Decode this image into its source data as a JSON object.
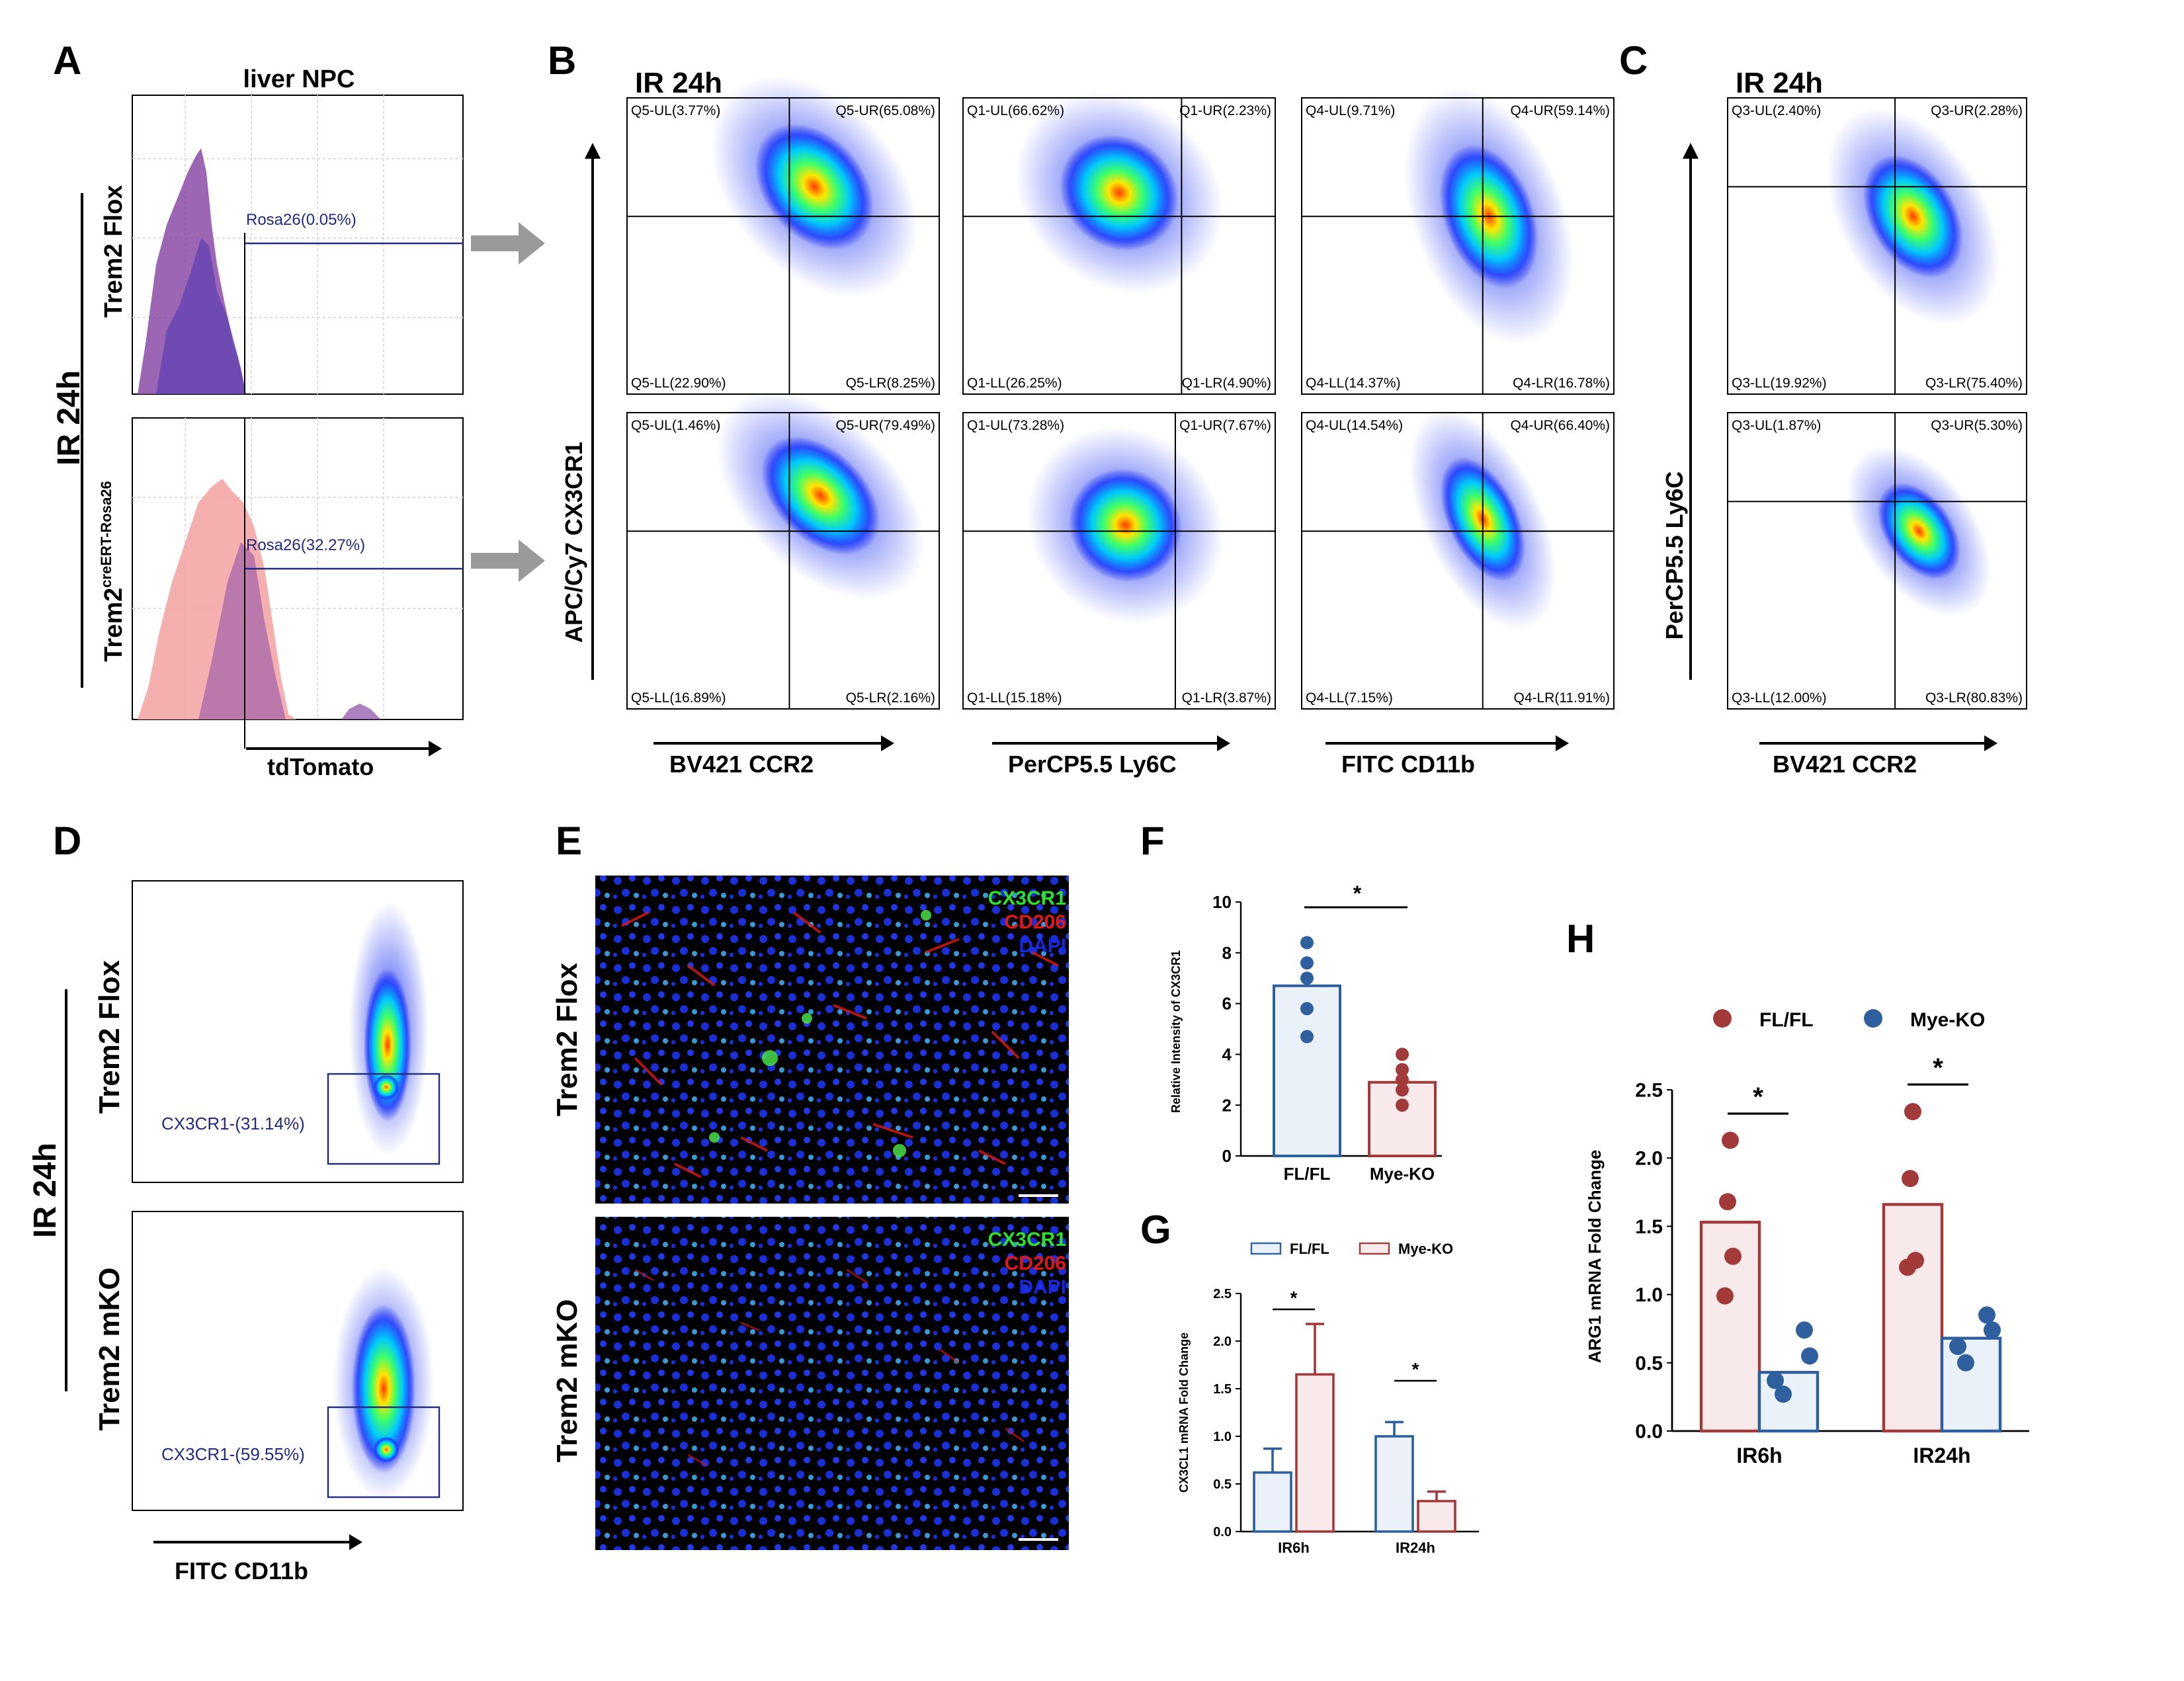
{
  "panels": {
    "A": "A",
    "B": "B",
    "C": "C",
    "D": "D",
    "E": "E",
    "F": "F",
    "G": "G",
    "H": "H"
  },
  "colors": {
    "fl_red": "#a23a3a",
    "ko_blue": "#2e5f9e",
    "fl_fill": "#f8eaea",
    "ko_fill": "#eaf1f8",
    "hist_pink": "#f4a6a6",
    "hist_purple": "#8b4ba8",
    "gate": "#1f2a80",
    "dot_blue": "#1428e6"
  },
  "panelA": {
    "title": "liver NPC",
    "condition": "IR 24h",
    "row1_label": "Trem2 Flox",
    "row2_label_main": "Trem2",
    "row2_label_sup": "creERT-Rosa26",
    "gate1": "Rosa26(0.05%)",
    "gate2": "Rosa26(32.27%)",
    "xaxis": "tdTomato"
  },
  "panelB": {
    "title": "IR 24h",
    "yaxis": "APC/Cy7  CX3CR1",
    "xaxes": [
      "BV421  CCR2",
      "PerCP5.5  Ly6C",
      "FITC  CD11b"
    ],
    "plots": [
      {
        "ul": "Q5-UL(3.77%)",
        "ur": "Q5-UR(65.08%)",
        "ll": "Q5-LL(22.90%)",
        "lr": "Q5-LR(8.25%)"
      },
      {
        "ul": "Q1-UL(66.62%)",
        "ur": "Q1-UR(2.23%)",
        "ll": "Q1-LL(26.25%)",
        "lr": "Q1-LR(4.90%)"
      },
      {
        "ul": "Q4-UL(9.71%)",
        "ur": "Q4-UR(59.14%)",
        "ll": "Q4-LL(14.37%)",
        "lr": "Q4-LR(16.78%)"
      },
      {
        "ul": "Q5-UL(1.46%)",
        "ur": "Q5-UR(79.49%)",
        "ll": "Q5-LL(16.89%)",
        "lr": "Q5-LR(2.16%)"
      },
      {
        "ul": "Q1-UL(73.28%)",
        "ur": "Q1-UR(7.67%)",
        "ll": "Q1-LL(15.18%)",
        "lr": "Q1-LR(3.87%)"
      },
      {
        "ul": "Q4-UL(14.54%)",
        "ur": "Q4-UR(66.40%)",
        "ll": "Q4-LL(7.15%)",
        "lr": "Q4-LR(11.91%)"
      }
    ]
  },
  "panelC": {
    "title": "IR 24h",
    "yaxis": "PerCP5.5  Ly6C",
    "xaxis": "BV421  CCR2",
    "plots": [
      {
        "ul": "Q3-UL(2.40%)",
        "ur": "Q3-UR(2.28%)",
        "ll": "Q3-LL(19.92%)",
        "lr": "Q3-LR(75.40%)"
      },
      {
        "ul": "Q3-UL(1.87%)",
        "ur": "Q3-UR(5.30%)",
        "ll": "Q3-LL(12.00%)",
        "lr": "Q3-LR(80.83%)"
      }
    ]
  },
  "panelD": {
    "condition": "IR 24h",
    "row1": "Trem2 Flox",
    "row2": "Trem2 mKO",
    "gate1": "CX3CR1-(31.14%)",
    "gate2": "CX3CR1-(59.55%)",
    "xaxis": "FITC  CD11b"
  },
  "panelE": {
    "row1": "Trem2 Flox",
    "row2": "Trem2 mKO",
    "legend": [
      "CX3CR1",
      "CD206",
      "DAPI"
    ]
  },
  "chart_data": [
    {
      "panel": "F",
      "type": "bar",
      "categories": [
        "FL/FL",
        "Mye-KO"
      ],
      "values": [
        6.7,
        2.9
      ],
      "points": [
        [
          8.4,
          7.6,
          7.0,
          5.8,
          4.7
        ],
        [
          4.0,
          3.4,
          3.0,
          2.6,
          2.0
        ]
      ],
      "ylabel": "Relative  Intensity of CX3CR1",
      "ylim": [
        0,
        10
      ],
      "yticks": [
        "0",
        "2",
        "4",
        "6",
        "8",
        "10"
      ],
      "significance": "*"
    },
    {
      "panel": "G",
      "type": "bar",
      "categories": [
        "IR6h",
        "IR24h"
      ],
      "series": [
        {
          "name": "FL/FL",
          "values": [
            0.62,
            1.0
          ],
          "errors": [
            0.25,
            0.15
          ]
        },
        {
          "name": "Mye-KO",
          "values": [
            1.65,
            0.32
          ],
          "errors": [
            0.53,
            0.1
          ]
        }
      ],
      "ylabel": "CX3CL1 mRNA Fold Change",
      "ylim": [
        0,
        2.5
      ],
      "yticks": [
        "0.0",
        "0.5",
        "1.0",
        "1.5",
        "2.0",
        "2.5"
      ],
      "significance": "*"
    },
    {
      "panel": "H",
      "type": "bar",
      "categories": [
        "IR6h",
        "IR24h"
      ],
      "series": [
        {
          "name": "FL/FL",
          "values": [
            1.53,
            1.66
          ],
          "points": [
            [
              2.13,
              1.68,
              1.28,
              0.99
            ],
            [
              2.34,
              1.85,
              1.25,
              1.2
            ]
          ]
        },
        {
          "name": "Mye-KO",
          "values": [
            0.43,
            0.68
          ],
          "points": [
            [
              0.74,
              0.55,
              0.37,
              0.27
            ],
            [
              0.85,
              0.74,
              0.62,
              0.5
            ]
          ]
        }
      ],
      "ylabel": "ARG1 mRNA Fold Change",
      "ylim": [
        0,
        2.5
      ],
      "yticks": [
        "0.0",
        "0.5",
        "1.0",
        "1.5",
        "2.0",
        "2.5"
      ],
      "significance": "*"
    }
  ]
}
